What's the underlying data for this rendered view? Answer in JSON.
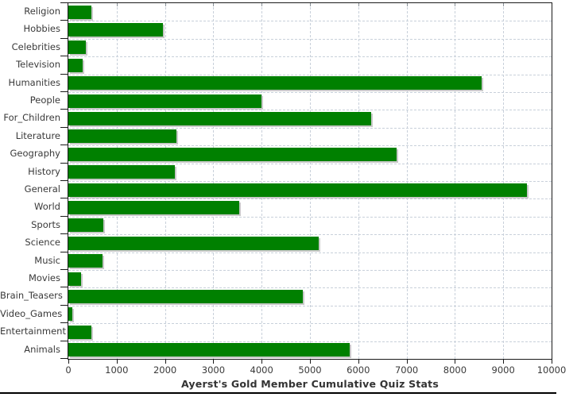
{
  "chart_data": {
    "type": "bar",
    "orientation": "horizontal",
    "title": "Ayerst's Gold Member Cumulative Quiz Stats",
    "categories": [
      "Religion",
      "Hobbies",
      "Celebrities",
      "Television",
      "Humanities",
      "People",
      "For_Children",
      "Literature",
      "Geography",
      "History",
      "General",
      "World",
      "Sports",
      "Science",
      "Music",
      "Movies",
      "Brain_Teasers",
      "Video_Games",
      "Entertainment",
      "Animals"
    ],
    "values": [
      470,
      1950,
      370,
      290,
      8560,
      4000,
      6260,
      2230,
      6800,
      2200,
      9490,
      3540,
      720,
      5180,
      700,
      260,
      4850,
      80,
      475,
      5820
    ],
    "xlabel": "",
    "ylabel": "",
    "xlim": [
      0,
      10000
    ],
    "x_tick_labels": [
      "0",
      "1000",
      "2000",
      "3000",
      "4000",
      "5000",
      "6000",
      "7000",
      "8000",
      "9000",
      "10000"
    ],
    "grid": "major vertical every 1000 and horizontal per category, dashed, behind bars",
    "legend": "none",
    "colors": {
      "bar_fill": "#008000",
      "bar_shadow": "#c9c9c9",
      "grid_line": "#c8d0da",
      "axis_line": "#1a1a1a",
      "text": "#3a3a3a",
      "background": "#ffffff"
    }
  }
}
